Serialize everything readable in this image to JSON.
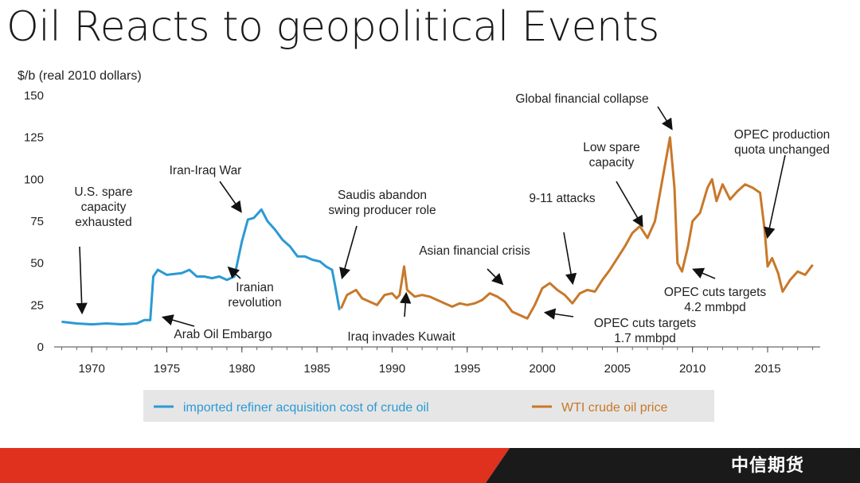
{
  "slide": {
    "title": "Oil Reacts to geopolitical Events",
    "brand": "中信期货",
    "footer_colors": [
      "#e0301e",
      "#1a1a1a"
    ]
  },
  "chart_data": {
    "type": "line",
    "ylabel": "$/b (real 2010 dollars)",
    "xlim": [
      1967.5,
      2018.5
    ],
    "ylim": [
      0,
      150
    ],
    "y_ticks": [
      0,
      25,
      50,
      75,
      100,
      125,
      150
    ],
    "x_ticks": [
      1970,
      1975,
      1980,
      1985,
      1990,
      1995,
      2000,
      2005,
      2010,
      2015
    ],
    "grid": false,
    "legend_position": "bottom",
    "series": [
      {
        "name": "imported refiner acquisition cost of crude oil",
        "color": "#2b9ad4",
        "points": [
          [
            1968,
            15
          ],
          [
            1969,
            14
          ],
          [
            1970,
            13.5
          ],
          [
            1971,
            14
          ],
          [
            1972,
            13.5
          ],
          [
            1973,
            14
          ],
          [
            1973.5,
            16
          ],
          [
            1973.9,
            16
          ],
          [
            1974.1,
            42
          ],
          [
            1974.4,
            46
          ],
          [
            1975,
            43
          ],
          [
            1976,
            44
          ],
          [
            1976.5,
            46
          ],
          [
            1977,
            42
          ],
          [
            1977.5,
            42
          ],
          [
            1978,
            41
          ],
          [
            1978.5,
            42
          ],
          [
            1979,
            40
          ],
          [
            1979.5,
            42
          ],
          [
            1980,
            63
          ],
          [
            1980.4,
            76
          ],
          [
            1980.8,
            77
          ],
          [
            1981.3,
            82
          ],
          [
            1981.7,
            75
          ],
          [
            1982.2,
            70
          ],
          [
            1982.7,
            64
          ],
          [
            1983.2,
            60
          ],
          [
            1983.7,
            54
          ],
          [
            1984.2,
            54
          ],
          [
            1984.7,
            52
          ],
          [
            1985.2,
            51
          ],
          [
            1985.6,
            48
          ],
          [
            1986,
            46
          ],
          [
            1986.2,
            37
          ],
          [
            1986.5,
            22
          ]
        ]
      },
      {
        "name": "WTI crude oil price",
        "color": "#c8782a",
        "points": [
          [
            1986.6,
            23
          ],
          [
            1987,
            31
          ],
          [
            1987.6,
            34
          ],
          [
            1988,
            29
          ],
          [
            1988.5,
            27
          ],
          [
            1989,
            25
          ],
          [
            1989.5,
            31
          ],
          [
            1990,
            32
          ],
          [
            1990.3,
            29
          ],
          [
            1990.5,
            31
          ],
          [
            1990.8,
            48
          ],
          [
            1991,
            34
          ],
          [
            1991.5,
            30
          ],
          [
            1992,
            31
          ],
          [
            1992.5,
            30
          ],
          [
            1993,
            28
          ],
          [
            1993.5,
            26
          ],
          [
            1994,
            24
          ],
          [
            1994.5,
            26
          ],
          [
            1995,
            25
          ],
          [
            1995.5,
            26
          ],
          [
            1996,
            28
          ],
          [
            1996.5,
            32
          ],
          [
            1997,
            30
          ],
          [
            1997.5,
            27
          ],
          [
            1998,
            21
          ],
          [
            1998.5,
            19
          ],
          [
            1999,
            17
          ],
          [
            1999.5,
            25
          ],
          [
            2000,
            35
          ],
          [
            2000.5,
            38
          ],
          [
            2001,
            34
          ],
          [
            2001.5,
            31
          ],
          [
            2002,
            26
          ],
          [
            2002.5,
            32
          ],
          [
            2003,
            34
          ],
          [
            2003.5,
            33
          ],
          [
            2004,
            40
          ],
          [
            2004.5,
            46
          ],
          [
            2005,
            53
          ],
          [
            2005.5,
            60
          ],
          [
            2006,
            68
          ],
          [
            2006.5,
            72
          ],
          [
            2007,
            65
          ],
          [
            2007.5,
            75
          ],
          [
            2008,
            100
          ],
          [
            2008.5,
            125
          ],
          [
            2008.8,
            95
          ],
          [
            2009,
            50
          ],
          [
            2009.3,
            45
          ],
          [
            2009.7,
            60
          ],
          [
            2010,
            75
          ],
          [
            2010.5,
            80
          ],
          [
            2011,
            95
          ],
          [
            2011.3,
            100
          ],
          [
            2011.6,
            87
          ],
          [
            2012,
            97
          ],
          [
            2012.5,
            88
          ],
          [
            2013,
            93
          ],
          [
            2013.5,
            97
          ],
          [
            2014,
            95
          ],
          [
            2014.5,
            92
          ],
          [
            2014.8,
            70
          ],
          [
            2015,
            48
          ],
          [
            2015.3,
            53
          ],
          [
            2015.7,
            44
          ],
          [
            2016,
            33
          ],
          [
            2016.5,
            40
          ],
          [
            2017,
            45
          ],
          [
            2017.5,
            43
          ],
          [
            2018,
            49
          ]
        ]
      }
    ],
    "annotations": [
      {
        "id": "us-spare",
        "lines": [
          "U.S. spare",
          "capacity",
          "exhausted"
        ]
      },
      {
        "id": "arab-embargo",
        "lines": [
          "Arab Oil Embargo"
        ]
      },
      {
        "id": "iran-iraq-war",
        "lines": [
          "Iran-Iraq War"
        ]
      },
      {
        "id": "iranian-revolution",
        "lines": [
          "Iranian",
          "revolution"
        ]
      },
      {
        "id": "saudis-abandon",
        "lines": [
          "Saudis abandon",
          "swing producer role"
        ]
      },
      {
        "id": "iraq-kuwait",
        "lines": [
          "Iraq invades Kuwait"
        ]
      },
      {
        "id": "asian-crisis",
        "lines": [
          "Asian financial crisis"
        ]
      },
      {
        "id": "nine-eleven",
        "lines": [
          "9-11 attacks"
        ]
      },
      {
        "id": "opec-cuts-17",
        "lines": [
          "OPEC cuts targets",
          "1.7 mmbpd"
        ]
      },
      {
        "id": "low-spare",
        "lines": [
          "Low spare",
          "capacity"
        ]
      },
      {
        "id": "global-collapse",
        "lines": [
          "Global financial collapse"
        ]
      },
      {
        "id": "opec-quota",
        "lines": [
          "OPEC production",
          "quota unchanged"
        ]
      },
      {
        "id": "opec-cuts-42",
        "lines": [
          "OPEC cuts targets",
          "4.2 mmbpd"
        ]
      }
    ]
  }
}
